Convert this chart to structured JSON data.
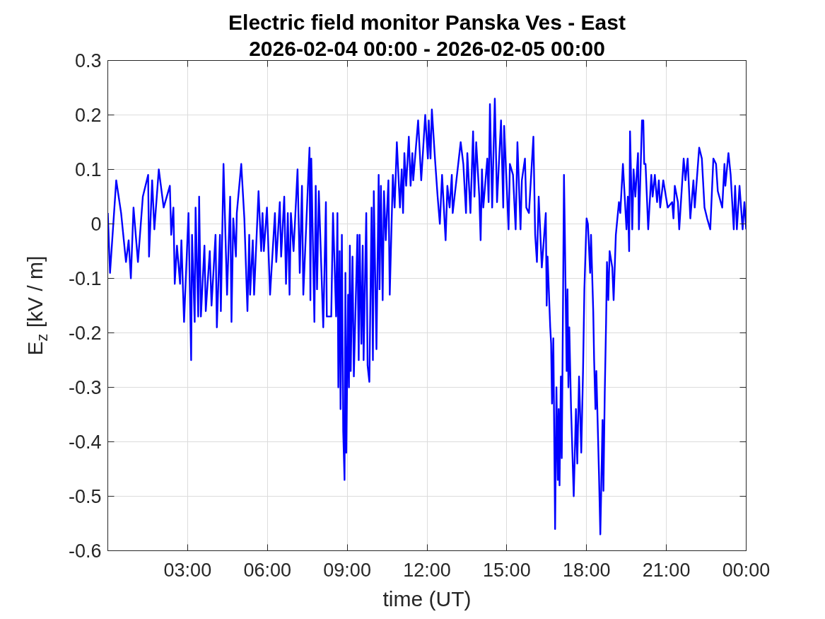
{
  "chart_data": {
    "type": "line",
    "title": "Electric field monitor Panska Ves - East",
    "subtitle": "2026-02-04 00:00 - 2026-02-05 00:00",
    "xlabel": "time (UT)",
    "ylabel": "E$_{z}$ [kV / m]",
    "x": [
      "2026-02-04T00:00",
      "2026-02-04T00:05",
      "2026-02-04T00:19",
      "2026-02-04T00:30",
      "2026-02-04T00:41",
      "2026-02-04T00:47",
      "2026-02-04T00:52",
      "2026-02-04T00:58",
      "2026-02-04T01:08",
      "2026-02-04T01:19",
      "2026-02-04T01:31",
      "2026-02-04T01:33",
      "2026-02-04T01:40",
      "2026-02-04T01:45",
      "2026-02-04T01:55",
      "2026-02-04T02:06",
      "2026-02-04T02:20",
      "2026-02-04T02:23",
      "2026-02-04T02:28",
      "2026-02-04T02:31",
      "2026-02-04T02:36",
      "2026-02-04T02:43",
      "2026-02-04T02:46",
      "2026-02-04T02:52",
      "2026-02-04T03:02",
      "2026-02-04T03:08",
      "2026-02-04T03:10",
      "2026-02-04T03:16",
      "2026-02-04T03:18",
      "2026-02-04T03:24",
      "2026-02-04T03:26",
      "2026-02-04T03:30",
      "2026-02-04T03:38",
      "2026-02-04T03:41",
      "2026-02-04T03:50",
      "2026-02-04T03:54",
      "2026-02-04T04:03",
      "2026-02-04T04:06",
      "2026-02-04T04:13",
      "2026-02-04T04:15",
      "2026-02-04T04:21",
      "2026-02-04T04:29",
      "2026-02-04T04:36",
      "2026-02-04T04:39",
      "2026-02-04T04:43",
      "2026-02-04T04:49",
      "2026-02-04T04:51",
      "2026-02-04T05:01",
      "2026-02-04T05:08",
      "2026-02-04T05:15",
      "2026-02-04T05:19",
      "2026-02-04T05:21",
      "2026-02-04T05:27",
      "2026-02-04T05:30",
      "2026-02-04T05:40",
      "2026-02-04T05:46",
      "2026-02-04T05:49",
      "2026-02-04T05:52",
      "2026-02-04T05:59",
      "2026-02-04T06:06",
      "2026-02-04T06:17",
      "2026-02-04T06:20",
      "2026-02-04T06:28",
      "2026-02-04T06:31",
      "2026-02-04T06:38",
      "2026-02-04T06:42",
      "2026-02-04T06:46",
      "2026-02-04T06:50",
      "2026-02-04T06:53",
      "2026-02-04T06:59",
      "2026-02-04T07:08",
      "2026-02-04T07:13",
      "2026-02-04T07:18",
      "2026-02-04T07:21",
      "2026-02-04T07:35",
      "2026-02-04T07:37",
      "2026-02-04T07:39",
      "2026-02-04T07:46",
      "2026-02-04T07:49",
      "2026-02-04T07:52",
      "2026-02-04T07:56",
      "2026-02-04T08:06",
      "2026-02-04T08:12",
      "2026-02-04T08:14",
      "2026-02-04T08:24",
      "2026-02-04T08:28",
      "2026-02-04T08:35",
      "2026-02-04T08:38",
      "2026-02-04T08:40",
      "2026-02-04T08:43",
      "2026-02-04T08:45",
      "2026-02-04T08:48",
      "2026-02-04T08:51",
      "2026-02-04T08:54",
      "2026-02-04T08:56",
      "2026-02-04T08:58",
      "2026-02-04T09:02",
      "2026-02-04T09:04",
      "2026-02-04T09:06",
      "2026-02-04T09:08",
      "2026-02-04T09:12",
      "2026-02-04T09:15",
      "2026-02-04T09:23",
      "2026-02-04T09:26",
      "2026-02-04T09:28",
      "2026-02-04T09:32",
      "2026-02-04T09:35",
      "2026-02-04T09:37",
      "2026-02-04T09:43",
      "2026-02-04T09:46",
      "2026-02-04T09:50",
      "2026-02-04T09:55",
      "2026-02-04T09:58",
      "2026-02-04T10:00",
      "2026-02-04T10:06",
      "2026-02-04T10:11",
      "2026-02-04T10:13",
      "2026-02-04T10:16",
      "2026-02-04T10:20",
      "2026-02-04T10:23",
      "2026-02-04T10:27",
      "2026-02-04T10:33",
      "2026-02-04T10:36",
      "2026-02-04T10:43",
      "2026-02-04T10:47",
      "2026-02-04T10:52",
      "2026-02-04T10:59",
      "2026-02-04T11:03",
      "2026-02-04T11:06",
      "2026-02-04T11:09",
      "2026-02-04T11:13",
      "2026-02-04T11:19",
      "2026-02-04T11:23",
      "2026-02-04T11:27",
      "2026-02-04T11:29",
      "2026-02-04T11:40",
      "2026-02-04T11:47",
      "2026-02-04T11:56",
      "2026-02-04T12:02",
      "2026-02-04T12:04",
      "2026-02-04T12:08",
      "2026-02-04T12:11",
      "2026-02-04T12:18",
      "2026-02-04T12:24",
      "2026-02-04T12:29",
      "2026-02-04T12:34",
      "2026-02-04T12:42",
      "2026-02-04T12:46",
      "2026-02-04T12:51",
      "2026-02-04T12:56",
      "2026-02-04T12:58",
      "2026-02-04T13:16",
      "2026-02-04T13:22",
      "2026-02-04T13:28",
      "2026-02-04T13:31",
      "2026-02-04T13:38",
      "2026-02-04T13:44",
      "2026-02-04T13:47",
      "2026-02-04T13:51",
      "2026-02-04T13:58",
      "2026-02-04T14:01",
      "2026-02-04T14:04",
      "2026-02-04T14:07",
      "2026-02-04T14:16",
      "2026-02-04T14:19",
      "2026-02-04T14:22",
      "2026-02-04T14:27",
      "2026-02-04T14:33",
      "2026-02-04T14:38",
      "2026-02-04T14:47",
      "2026-02-04T14:52",
      "2026-02-04T14:54",
      "2026-02-04T15:04",
      "2026-02-04T15:07",
      "2026-02-04T15:14",
      "2026-02-04T15:20",
      "2026-02-04T15:24",
      "2026-02-04T15:31",
      "2026-02-04T15:34",
      "2026-02-04T15:41",
      "2026-02-04T15:44",
      "2026-02-04T15:50",
      "2026-02-04T16:00",
      "2026-02-04T16:04",
      "2026-02-04T16:08",
      "2026-02-04T16:12",
      "2026-02-04T16:19",
      "2026-02-04T16:28",
      "2026-02-04T16:30",
      "2026-02-04T16:32",
      "2026-02-04T16:38",
      "2026-02-04T16:40",
      "2026-02-04T16:42",
      "2026-02-04T16:45",
      "2026-02-04T16:49",
      "2026-02-04T16:52",
      "2026-02-04T16:55",
      "2026-02-04T16:57",
      "2026-02-04T16:59",
      "2026-02-04T17:02",
      "2026-02-04T17:04",
      "2026-02-04T17:07",
      "2026-02-04T17:09",
      "2026-02-04T17:11",
      "2026-02-04T17:15",
      "2026-02-04T17:17",
      "2026-02-04T17:19",
      "2026-02-04T17:21",
      "2026-02-04T17:25",
      "2026-02-04T17:31",
      "2026-02-04T17:36",
      "2026-02-04T17:39",
      "2026-02-04T17:43",
      "2026-02-04T17:48",
      "2026-02-04T17:52",
      "2026-02-04T17:55",
      "2026-02-04T18:00",
      "2026-02-04T18:03",
      "2026-02-04T18:08",
      "2026-02-04T18:10",
      "2026-02-04T18:15",
      "2026-02-04T18:17",
      "2026-02-04T18:20",
      "2026-02-04T18:22",
      "2026-02-04T18:28",
      "2026-02-04T18:31",
      "2026-02-04T18:33",
      "2026-02-04T18:36",
      "2026-02-04T18:38",
      "2026-02-04T18:41",
      "2026-02-04T18:44",
      "2026-02-04T18:46",
      "2026-02-04T18:49",
      "2026-02-04T18:52",
      "2026-02-04T18:58",
      "2026-02-04T19:01",
      "2026-02-04T19:06",
      "2026-02-04T19:13",
      "2026-02-04T19:16",
      "2026-02-04T19:22",
      "2026-02-04T19:30",
      "2026-02-04T19:33",
      "2026-02-04T19:36",
      "2026-02-04T19:38",
      "2026-02-04T19:43",
      "2026-02-04T19:46",
      "2026-02-04T19:50",
      "2026-02-04T19:56",
      "2026-02-04T19:58",
      "2026-02-04T20:05",
      "2026-02-04T20:08",
      "2026-02-04T20:10",
      "2026-02-04T20:13",
      "2026-02-04T20:19",
      "2026-02-04T20:26",
      "2026-02-04T20:29",
      "2026-02-04T20:34",
      "2026-02-04T20:39",
      "2026-02-04T20:43",
      "2026-02-04T20:46",
      "2026-02-04T20:53",
      "2026-02-04T21:03",
      "2026-02-04T21:13",
      "2026-02-04T21:16",
      "2026-02-04T21:19",
      "2026-02-04T21:26",
      "2026-02-04T21:29",
      "2026-02-04T21:39",
      "2026-02-04T21:43",
      "2026-02-04T21:48",
      "2026-02-04T21:54",
      "2026-02-04T22:01",
      "2026-02-04T22:04",
      "2026-02-04T22:14",
      "2026-02-04T22:20",
      "2026-02-04T22:26",
      "2026-02-04T22:32",
      "2026-02-04T22:39",
      "2026-02-04T22:46",
      "2026-02-04T22:52",
      "2026-02-04T22:56",
      "2026-02-04T23:06",
      "2026-02-04T23:11",
      "2026-02-04T23:13",
      "2026-02-04T23:20",
      "2026-02-04T23:25",
      "2026-02-04T23:32",
      "2026-02-04T23:35",
      "2026-02-04T23:39",
      "2026-02-04T23:45",
      "2026-02-04T23:52",
      "2026-02-04T23:56",
      "2026-02-05T00:00"
    ],
    "series": [
      {
        "color": "#0000ff",
        "values": [
          0.02,
          -0.09,
          0.08,
          0.02,
          -0.07,
          -0.03,
          -0.1,
          0.03,
          -0.07,
          0.05,
          0.09,
          -0.06,
          0.08,
          -0.01,
          0.1,
          0.03,
          0.07,
          -0.02,
          0.03,
          -0.11,
          -0.04,
          -0.11,
          -0.03,
          -0.18,
          0.02,
          -0.25,
          -0.02,
          -0.18,
          0.03,
          -0.17,
          0.05,
          -0.17,
          -0.04,
          -0.16,
          -0.05,
          -0.15,
          -0.02,
          -0.19,
          -0.02,
          -0.16,
          0.11,
          -0.13,
          0.05,
          -0.18,
          0.01,
          -0.06,
          0.02,
          0.11,
          0.01,
          -0.16,
          -0.02,
          -0.13,
          -0.03,
          -0.13,
          0.06,
          -0.05,
          0.02,
          -0.05,
          0.03,
          -0.13,
          0.02,
          -0.07,
          0.04,
          -0.06,
          0.05,
          -0.11,
          0.02,
          -0.13,
          0.02,
          -0.05,
          0.1,
          -0.09,
          0.07,
          -0.13,
          0.14,
          -0.14,
          0.12,
          -0.18,
          0.07,
          -0.12,
          0.06,
          -0.19,
          0.04,
          -0.17,
          -0.17,
          0.02,
          -0.17,
          0.02,
          -0.3,
          -0.05,
          -0.34,
          -0.02,
          -0.38,
          -0.47,
          -0.09,
          -0.42,
          -0.13,
          -0.3,
          -0.04,
          -0.27,
          -0.06,
          -0.28,
          -0.02,
          -0.25,
          -0.02,
          -0.22,
          -0.04,
          -0.25,
          0.02,
          -0.26,
          -0.29,
          0.03,
          -0.25,
          0.06,
          -0.23,
          0.09,
          -0.12,
          0.07,
          -0.14,
          0.06,
          -0.03,
          0.08,
          -0.13,
          0.09,
          0.03,
          0.15,
          0.03,
          0.1,
          0.02,
          0.13,
          0.07,
          0.16,
          0.07,
          0.13,
          0.08,
          0.19,
          0.08,
          0.2,
          0.12,
          0.19,
          0.12,
          0.21,
          0.12,
          0.05,
          0.0,
          0.09,
          -0.03,
          0.07,
          0.03,
          0.09,
          0.02,
          0.15,
          0.11,
          0.02,
          0.13,
          0.02,
          0.17,
          0.05,
          0.15,
          0.05,
          -0.03,
          0.1,
          0.03,
          0.12,
          0.04,
          0.22,
          0.03,
          0.23,
          0.04,
          0.19,
          0.03,
          0.18,
          -0.01,
          0.11,
          0.09,
          -0.01,
          0.15,
          -0.01,
          0.08,
          0.12,
          0.03,
          0.02,
          0.16,
          -0.02,
          -0.07,
          0.05,
          -0.08,
          0.02,
          -0.15,
          -0.06,
          -0.19,
          -0.22,
          -0.33,
          -0.21,
          -0.56,
          -0.3,
          -0.47,
          -0.34,
          -0.48,
          -0.28,
          -0.43,
          -0.13,
          0.09,
          -0.02,
          -0.27,
          -0.12,
          -0.3,
          -0.19,
          -0.34,
          -0.5,
          -0.34,
          -0.44,
          -0.28,
          -0.42,
          -0.27,
          -0.12,
          0.01,
          0.0,
          -0.09,
          -0.02,
          -0.16,
          -0.25,
          -0.34,
          -0.27,
          -0.46,
          -0.57,
          -0.49,
          -0.36,
          -0.49,
          -0.31,
          -0.18,
          -0.07,
          -0.14,
          -0.05,
          -0.08,
          -0.14,
          -0.02,
          0.04,
          0.02,
          0.11,
          -0.01,
          0.05,
          -0.05,
          0.17,
          -0.01,
          0.1,
          0.05,
          0.13,
          -0.01,
          0.19,
          0.19,
          0.11,
          0.11,
          -0.01,
          0.09,
          0.05,
          0.09,
          0.04,
          0.08,
          0.03,
          0.08,
          0.03,
          0.04,
          0.01,
          0.07,
          0.04,
          -0.01,
          0.12,
          0.08,
          0.12,
          0.01,
          0.08,
          0.03,
          0.14,
          0.12,
          0.03,
          0.01,
          -0.01,
          0.12,
          0.11,
          0.06,
          0.03,
          0.11,
          0.07,
          0.13,
          0.09,
          -0.01,
          0.07,
          -0.01,
          0.07,
          -0.01,
          0.04,
          -0.01
        ]
      }
    ],
    "xlim": [
      "2026-02-04T00:00",
      "2026-02-05T00:00"
    ],
    "xticks": [
      {
        "value": "2026-02-04T03:00",
        "label": "03:00"
      },
      {
        "value": "2026-02-04T06:00",
        "label": "06:00"
      },
      {
        "value": "2026-02-04T09:00",
        "label": "09:00"
      },
      {
        "value": "2026-02-04T12:00",
        "label": "12:00"
      },
      {
        "value": "2026-02-04T15:00",
        "label": "15:00"
      },
      {
        "value": "2026-02-04T18:00",
        "label": "18:00"
      },
      {
        "value": "2026-02-04T21:00",
        "label": "21:00"
      },
      {
        "value": "2026-02-05T00:00",
        "label": "00:00"
      }
    ],
    "ylim": [
      -0.6,
      0.3
    ],
    "yticks": [
      -0.6,
      -0.5,
      -0.4,
      -0.3,
      -0.2,
      -0.1,
      0,
      0.1,
      0.2,
      0.3
    ],
    "grid": true,
    "line_style": "solid"
  }
}
